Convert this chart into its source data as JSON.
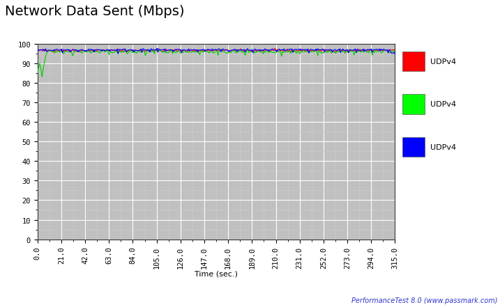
{
  "title": "Network Data Sent (Mbps)",
  "xlabel": "Time (sec.)",
  "xlim": [
    0,
    315
  ],
  "ylim": [
    0,
    100
  ],
  "yticks": [
    0,
    10,
    20,
    30,
    40,
    50,
    60,
    70,
    80,
    90,
    100
  ],
  "xticks": [
    0.0,
    21.0,
    42.0,
    63.0,
    84.0,
    105.0,
    126.0,
    147.0,
    168.0,
    189.0,
    210.0,
    231.0,
    252.0,
    273.0,
    294.0,
    315.0
  ],
  "bg_color": "#C0C0C0",
  "outer_bg": "#FFFFFF",
  "grid_color": "#FFFFFF",
  "legend_labels": [
    "UDPv4",
    "UDPv4",
    "UDPv4"
  ],
  "legend_colors": [
    "#FF0000",
    "#00FF00",
    "#0000FF"
  ],
  "line_colors": [
    "#FF0000",
    "#00CC00",
    "#0000FF"
  ],
  "watermark": "PerformanceTest 8.0 (www.passmark.com)",
  "n_points": 316,
  "title_fontsize": 14,
  "tick_fontsize": 7.5,
  "xlabel_fontsize": 8,
  "watermark_color": "#3333CC"
}
